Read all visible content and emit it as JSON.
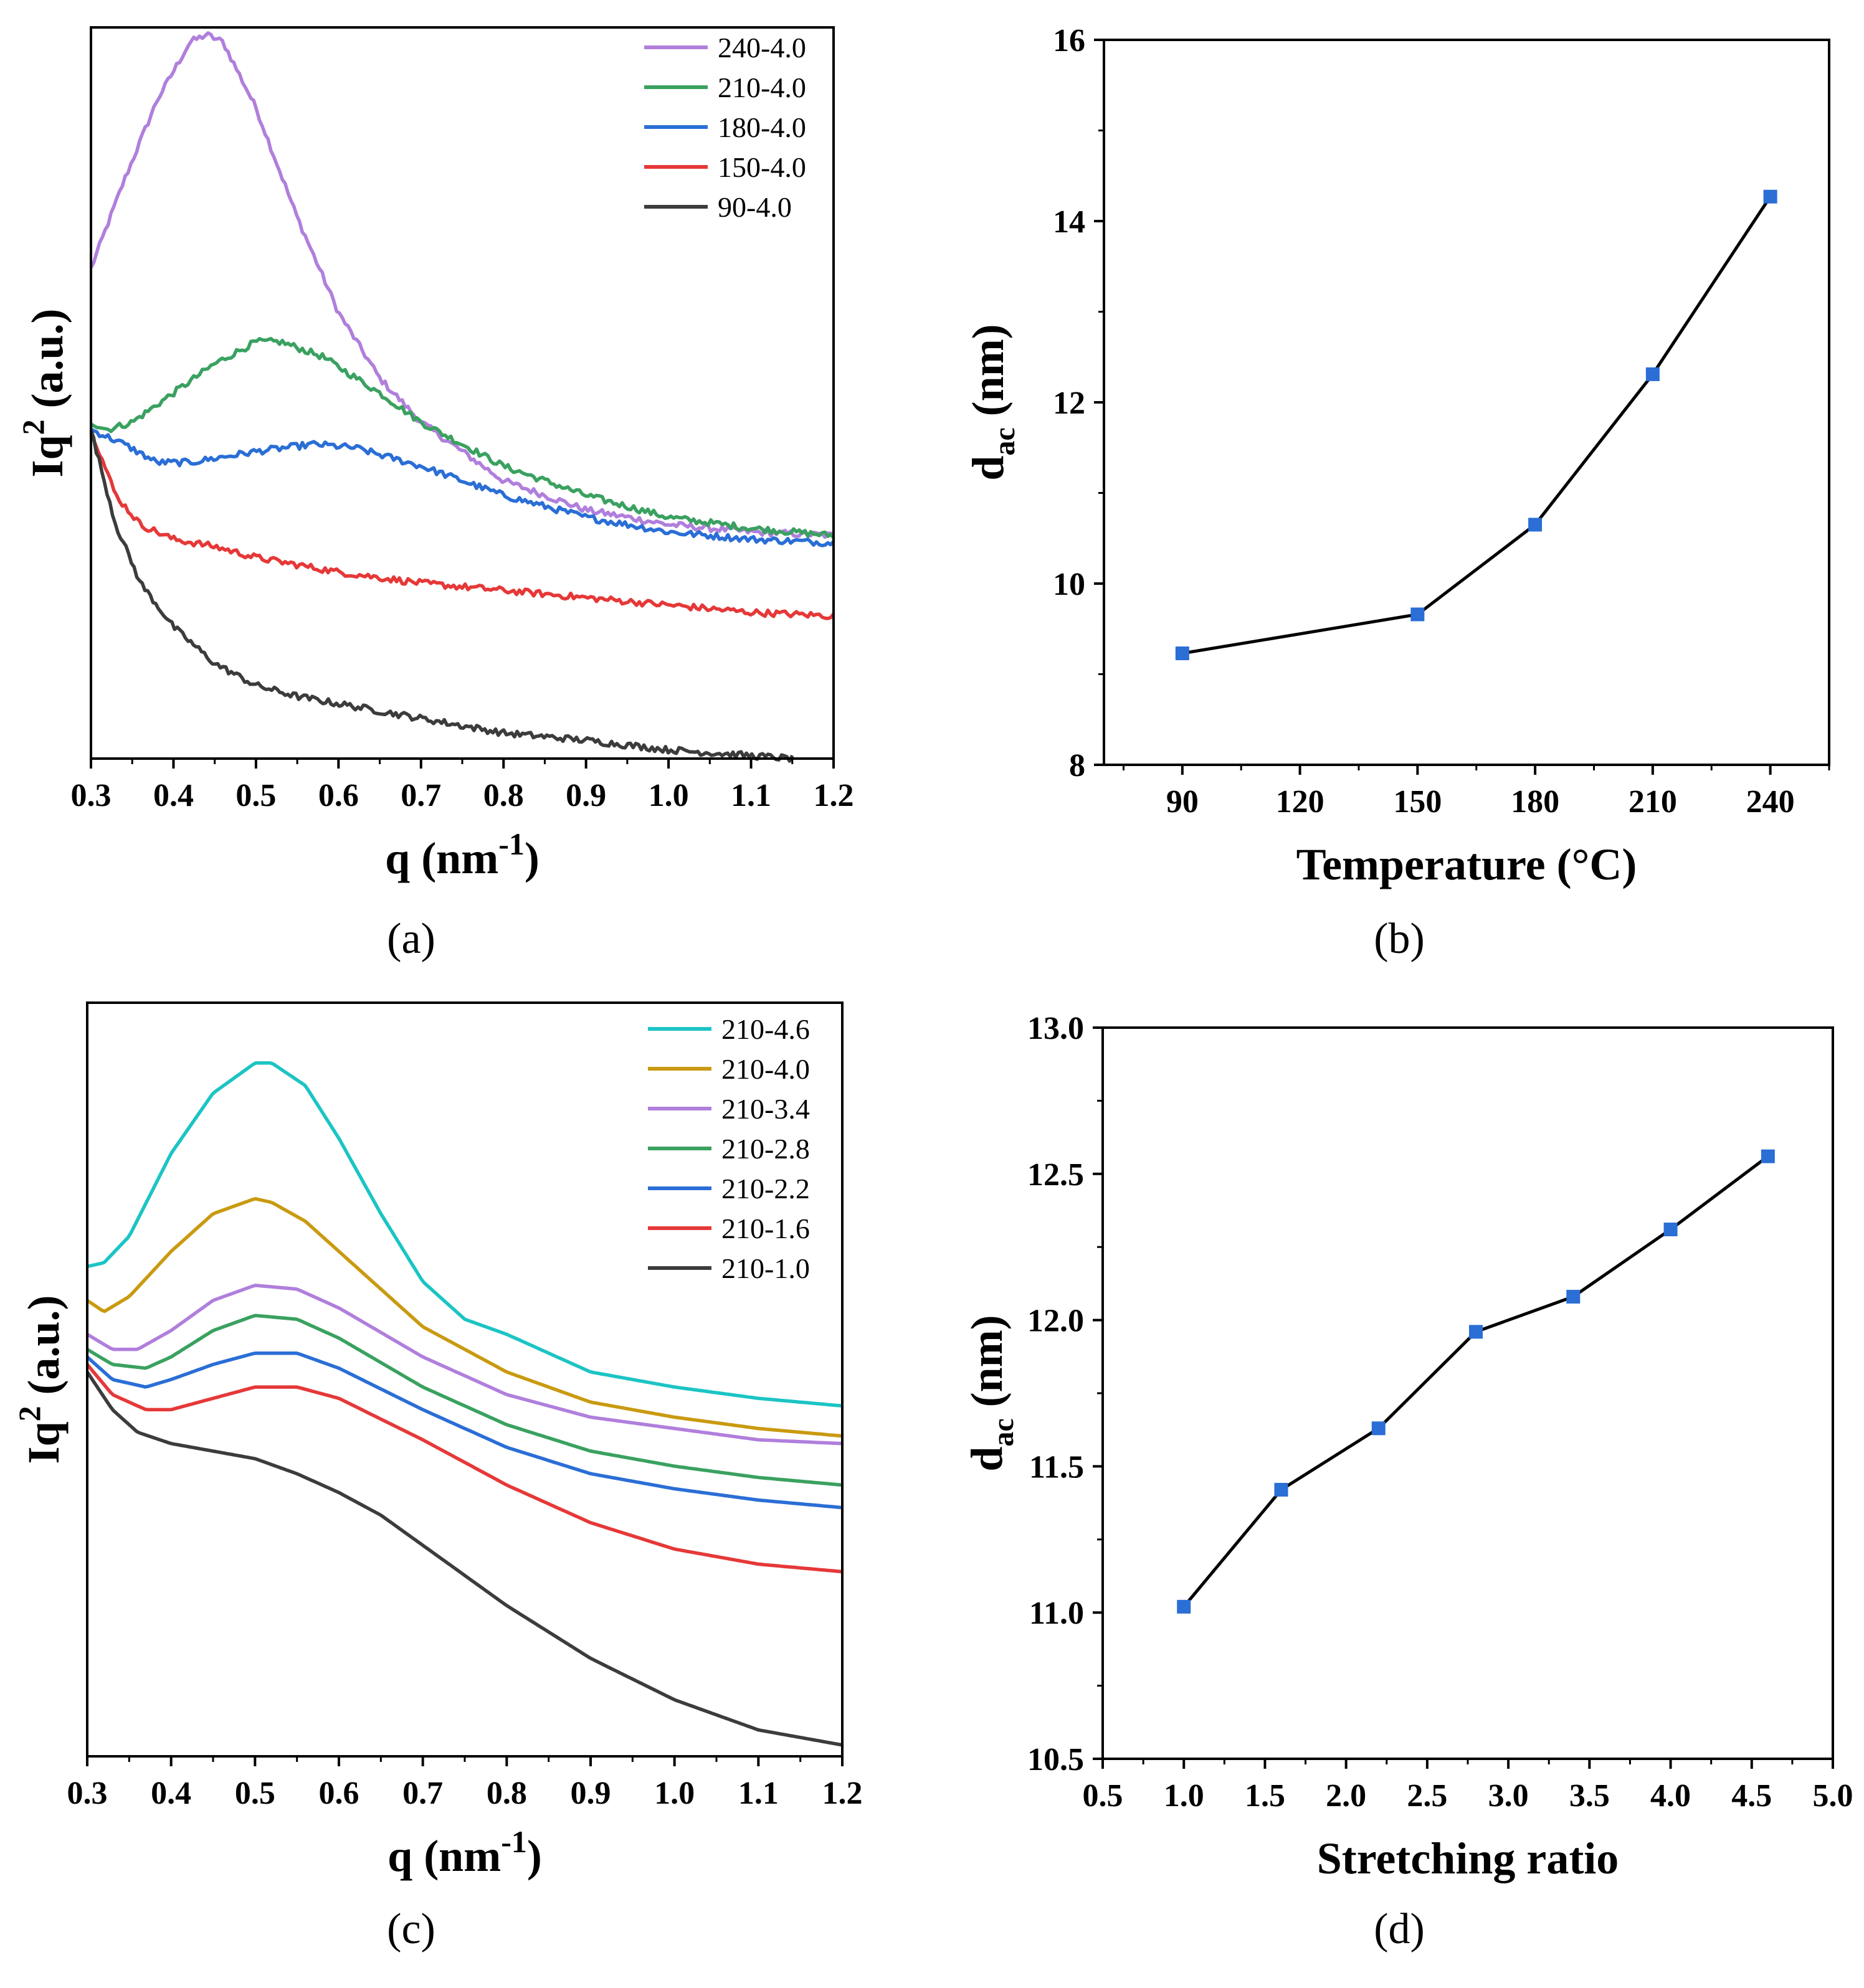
{
  "chart_data": [
    {
      "panel": "(a)",
      "type": "line",
      "xlabel_main": "q (nm",
      "xlabel_sup": "-1",
      "xlabel_end": ")",
      "ylabel_main": "Iq",
      "ylabel_sup": "2",
      "ylabel_end": " (a.u.)",
      "xlim": [
        0.3,
        1.2
      ],
      "ylim": [
        0,
        100
      ],
      "y_ticks_labeled": false,
      "xticks": [
        "0.3",
        "0.4",
        "0.5",
        "0.6",
        "0.7",
        "0.8",
        "0.9",
        "1.0",
        "1.1",
        "1.2"
      ],
      "legend_position": "top-right",
      "noisy": true,
      "series": [
        {
          "name": "240-4.0",
          "color": "#b07fdc",
          "x": [
            0.3,
            0.34,
            0.38,
            0.42,
            0.44,
            0.46,
            0.5,
            0.55,
            0.6,
            0.65,
            0.7,
            0.8,
            0.9,
            1.0,
            1.1,
            1.2
          ],
          "y": [
            67,
            79,
            90,
            98,
            99,
            98,
            89,
            74,
            61,
            52,
            46,
            38,
            34,
            32,
            31,
            30.5
          ]
        },
        {
          "name": "210-4.0",
          "color": "#3aa160",
          "x": [
            0.3,
            0.32,
            0.35,
            0.4,
            0.45,
            0.5,
            0.53,
            0.58,
            0.65,
            0.7,
            0.8,
            0.9,
            1.0,
            1.1,
            1.2
          ],
          "y": [
            46,
            45,
            46,
            50,
            54,
            57,
            57,
            55,
            50,
            46,
            40,
            36,
            33,
            31.5,
            30.5
          ]
        },
        {
          "name": "180-4.0",
          "color": "#2a6ed6",
          "x": [
            0.3,
            0.34,
            0.38,
            0.42,
            0.5,
            0.57,
            0.62,
            0.7,
            0.8,
            0.9,
            1.0,
            1.1,
            1.2
          ],
          "y": [
            45,
            43,
            40.5,
            40.5,
            42,
            43,
            42.5,
            40,
            36,
            33,
            31,
            30,
            29.5
          ]
        },
        {
          "name": "150-4.0",
          "color": "#e63838",
          "x": [
            0.3,
            0.33,
            0.36,
            0.4,
            0.45,
            0.5,
            0.6,
            0.7,
            0.8,
            0.9,
            1.0,
            1.1,
            1.2
          ],
          "y": [
            45,
            36,
            32,
            30,
            29,
            27.5,
            25.5,
            24,
            23,
            22,
            21,
            20,
            19.5
          ]
        },
        {
          "name": "90-4.0",
          "color": "#3c3c3c",
          "x": [
            0.3,
            0.33,
            0.36,
            0.4,
            0.45,
            0.5,
            0.55,
            0.6,
            0.7,
            0.8,
            0.9,
            1.0,
            1.1,
            1.15
          ],
          "y": [
            45,
            32,
            24,
            18,
            13,
            10,
            8.5,
            7.5,
            5.5,
            3.5,
            2.5,
            1.2,
            0.4,
            0
          ]
        }
      ]
    },
    {
      "panel": "(b)",
      "type": "line",
      "xlabel": "Temperature (°C)",
      "ylabel_main": "d",
      "ylabel_sub": "ac",
      "ylabel_end": " (nm)",
      "xlim": [
        70,
        255
      ],
      "ylim": [
        8,
        16
      ],
      "xticks": [
        90,
        120,
        150,
        180,
        210,
        240
      ],
      "yticks": [
        8,
        10,
        12,
        14,
        16
      ],
      "marker_color": "#2a6ed6",
      "x": [
        90,
        150,
        180,
        210,
        240
      ],
      "y": [
        9.23,
        9.66,
        10.65,
        12.31,
        14.27
      ]
    },
    {
      "panel": "(c)",
      "type": "line",
      "xlabel_main": "q (nm",
      "xlabel_sup": "-1",
      "xlabel_end": ")",
      "ylabel_main": "Iq",
      "ylabel_sup": "2",
      "ylabel_end": " (a.u.)",
      "xlim": [
        0.3,
        1.2
      ],
      "ylim": [
        0,
        100
      ],
      "y_ticks_labeled": false,
      "xticks": [
        "0.3",
        "0.4",
        "0.5",
        "0.6",
        "0.7",
        "0.8",
        "0.9",
        "1.0",
        "1.1",
        "1.2"
      ],
      "legend_position": "top-right",
      "noisy": false,
      "series": [
        {
          "name": "210-4.6",
          "color": "#1cc4c4",
          "x": [
            0.3,
            0.32,
            0.35,
            0.4,
            0.45,
            0.5,
            0.52,
            0.56,
            0.6,
            0.65,
            0.7,
            0.75,
            0.8,
            0.9,
            1.0,
            1.1,
            1.2
          ],
          "y": [
            65,
            65.5,
            69,
            80,
            88,
            92,
            92,
            89,
            82,
            72,
            63,
            58,
            56,
            51,
            49,
            47.5,
            46.5
          ]
        },
        {
          "name": "210-4.0",
          "color": "#c99a10",
          "x": [
            0.3,
            0.32,
            0.35,
            0.4,
            0.45,
            0.5,
            0.52,
            0.56,
            0.6,
            0.65,
            0.7,
            0.8,
            0.9,
            1.0,
            1.1,
            1.2
          ],
          "y": [
            60.5,
            59,
            61,
            67,
            72,
            74,
            73.5,
            71,
            67,
            62,
            57,
            51,
            47,
            45,
            43.5,
            42.5
          ]
        },
        {
          "name": "210-3.4",
          "color": "#b07fdc",
          "x": [
            0.3,
            0.33,
            0.36,
            0.4,
            0.45,
            0.5,
            0.55,
            0.6,
            0.7,
            0.8,
            0.9,
            1.0,
            1.1,
            1.2
          ],
          "y": [
            56,
            54,
            54,
            56.5,
            60.5,
            62.5,
            62,
            59.5,
            53,
            48,
            45,
            43.5,
            42,
            41.5
          ]
        },
        {
          "name": "210-2.8",
          "color": "#3aa160",
          "x": [
            0.3,
            0.33,
            0.37,
            0.4,
            0.45,
            0.5,
            0.55,
            0.6,
            0.7,
            0.8,
            0.9,
            1.0,
            1.1,
            1.2
          ],
          "y": [
            54,
            52,
            51.5,
            53,
            56.5,
            58.5,
            58,
            55.5,
            49,
            44,
            40.5,
            38.5,
            37,
            36
          ]
        },
        {
          "name": "210-2.2",
          "color": "#2a6ed6",
          "x": [
            0.3,
            0.33,
            0.37,
            0.4,
            0.45,
            0.5,
            0.55,
            0.6,
            0.7,
            0.8,
            0.9,
            1.0,
            1.1,
            1.2
          ],
          "y": [
            53,
            50,
            49,
            50,
            52,
            53.5,
            53.5,
            51.5,
            46,
            41,
            37.5,
            35.5,
            34,
            33
          ]
        },
        {
          "name": "210-1.6",
          "color": "#e63838",
          "x": [
            0.3,
            0.33,
            0.37,
            0.4,
            0.45,
            0.5,
            0.55,
            0.6,
            0.7,
            0.8,
            0.9,
            1.0,
            1.1,
            1.2
          ],
          "y": [
            52,
            48,
            46,
            46,
            47.5,
            49,
            49,
            47.5,
            42,
            36,
            31,
            27.5,
            25.5,
            24.5
          ]
        },
        {
          "name": "210-1.0",
          "color": "#3c3c3c",
          "x": [
            0.3,
            0.33,
            0.36,
            0.4,
            0.45,
            0.5,
            0.55,
            0.6,
            0.65,
            0.7,
            0.8,
            0.9,
            1.0,
            1.1,
            1.2
          ],
          "y": [
            51,
            46,
            43,
            41.5,
            40.5,
            39.5,
            37.5,
            35,
            32,
            28,
            20,
            13,
            7.5,
            3.5,
            1.5
          ]
        }
      ]
    },
    {
      "panel": "(d)",
      "type": "line",
      "xlabel": "Stretching ratio",
      "ylabel_main": "d",
      "ylabel_sub": "ac",
      "ylabel_end": " (nm)",
      "xlim": [
        0.5,
        5.0
      ],
      "ylim": [
        10.5,
        13.0
      ],
      "xticks": [
        "0.5",
        "1.0",
        "1.5",
        "2.0",
        "2.5",
        "3.0",
        "3.5",
        "4.0",
        "4.5",
        "5.0"
      ],
      "yticks": [
        "10.5",
        "11.0",
        "11.5",
        "12.0",
        "12.5",
        "13.0"
      ],
      "marker_color": "#2a6ed6",
      "x": [
        1.0,
        1.6,
        2.2,
        2.8,
        3.4,
        4.0,
        4.6
      ],
      "y": [
        11.02,
        11.42,
        11.63,
        11.96,
        12.08,
        12.31,
        12.56
      ]
    }
  ]
}
